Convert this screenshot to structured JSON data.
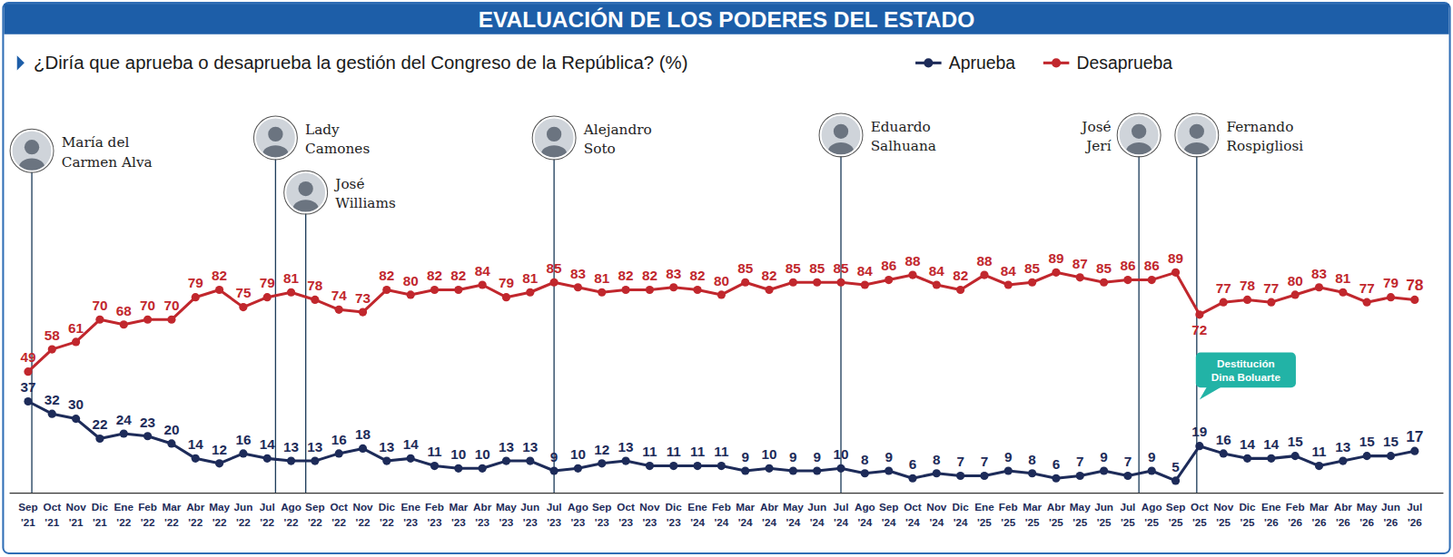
{
  "chart_data": {
    "type": "line",
    "title": "EVALUACIÓN DE LOS PODERES DEL ESTADO",
    "subtitle": "¿Diría que aprueba o desaprueba la gestión del Congreso de la República? (%)",
    "categories": [
      "Sep '21",
      "Oct '21",
      "Nov '21",
      "Dic '21",
      "Ene '22",
      "Feb '22",
      "Mar '22",
      "Abr '22",
      "May '22",
      "Jun '22",
      "Jul '22",
      "Ago '22",
      "Sep '22",
      "Oct '22",
      "Nov '22",
      "Dic '22",
      "Ene '23",
      "Feb '23",
      "Mar '23",
      "Abr '23",
      "May '23",
      "Jun '23",
      "Jul '23",
      "Ago '23",
      "Sep '23",
      "Oct '23",
      "Nov '23",
      "Dic '23",
      "Ene '24",
      "Feb '24",
      "Mar '24",
      "Abr '24",
      "May '24",
      "Jun '24",
      "Jul '24",
      "Ago '24",
      "Sep '24",
      "Oct '24",
      "Nov '24",
      "Dic '24",
      "Ene '25",
      "Feb '25",
      "Mar '25",
      "Abr '25",
      "May '25",
      "Jun '25",
      "Jul '25",
      "Ago '25",
      "Sep '25",
      "Oct '25",
      "Nov '25",
      "Dic '25",
      "Ene '26",
      "Feb '26",
      "Mar '26",
      "Abr '26",
      "May '26",
      "Jun '26",
      "Jul '26"
    ],
    "series": [
      {
        "name": "Aprueba",
        "color": "#1d2b59",
        "values": [
          37,
          32,
          30,
          22,
          24,
          23,
          20,
          14,
          12,
          16,
          14,
          13,
          13,
          16,
          18,
          13,
          14,
          11,
          10,
          10,
          13,
          13,
          9,
          10,
          12,
          13,
          11,
          11,
          11,
          11,
          9,
          10,
          9,
          9,
          10,
          8,
          9,
          6,
          8,
          7,
          7,
          9,
          8,
          6,
          7,
          9,
          7,
          9,
          5,
          19,
          16,
          14,
          14,
          15,
          11,
          13,
          15,
          15,
          17
        ]
      },
      {
        "name": "Desaprueba",
        "color": "#c1272d",
        "values": [
          49,
          58,
          61,
          70,
          68,
          70,
          70,
          79,
          82,
          75,
          79,
          81,
          78,
          74,
          73,
          82,
          80,
          82,
          82,
          84,
          79,
          81,
          85,
          83,
          81,
          82,
          82,
          83,
          82,
          80,
          85,
          82,
          85,
          85,
          85,
          84,
          86,
          88,
          84,
          82,
          88,
          84,
          85,
          89,
          87,
          85,
          86,
          86,
          89,
          72,
          77,
          78,
          77,
          80,
          83,
          81,
          77,
          79,
          78
        ]
      }
    ],
    "ylim": [
      0,
      100
    ],
    "tick_labels": "x",
    "grid": false,
    "data_labels": true,
    "marker": "circle",
    "legend": "top",
    "annotations": [
      {
        "text": "María del Carmen Alva",
        "category": "Sep '21"
      },
      {
        "text": "Lady Camones",
        "category": "Jul '22"
      },
      {
        "text": "José Williams",
        "category": "Sep '22"
      },
      {
        "text": "Alejandro Soto",
        "category": "Jul '23"
      },
      {
        "text": "Eduardo Salhuana",
        "category": "Jul '24"
      },
      {
        "text": "José Jerí",
        "category": "Jul '25"
      },
      {
        "text": "Fernando Rospigliosi",
        "category": "Oct '25"
      }
    ],
    "callout": {
      "text": "Destitución Dina Boluarte",
      "category": "Oct '25"
    }
  }
}
